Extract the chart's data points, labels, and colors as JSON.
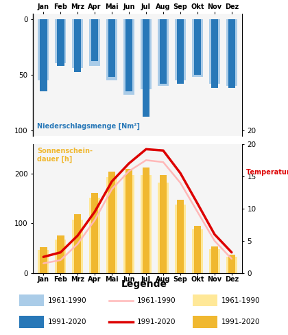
{
  "months": [
    "Jan",
    "Feb",
    "Mrz",
    "Apr",
    "Mai",
    "Jun",
    "Jul",
    "Aug",
    "Sep",
    "Okt",
    "Nov",
    "Dez"
  ],
  "precip_1961_1990": [
    55,
    40,
    44,
    42,
    55,
    68,
    63,
    60,
    55,
    52,
    58,
    60
  ],
  "precip_1991_2020": [
    65,
    42,
    48,
    38,
    52,
    65,
    88,
    58,
    58,
    50,
    62,
    62
  ],
  "temp_1961_1990": [
    1.5,
    2.0,
    4.5,
    8.2,
    13.0,
    15.8,
    17.5,
    17.2,
    14.0,
    9.5,
    5.0,
    2.2
  ],
  "temp_1991_2020": [
    2.5,
    3.2,
    5.8,
    9.5,
    14.2,
    17.0,
    19.2,
    19.0,
    15.5,
    10.8,
    6.0,
    3.2
  ],
  "sunshine_1961_1990": [
    47,
    68,
    108,
    152,
    193,
    198,
    198,
    182,
    138,
    88,
    48,
    33
  ],
  "sunshine_1991_2020": [
    52,
    76,
    118,
    162,
    205,
    210,
    213,
    198,
    148,
    95,
    53,
    37
  ],
  "precip_color_old": "#aacce8",
  "precip_color_new": "#2878b8",
  "sunshine_color_old": "#ffe898",
  "sunshine_color_new": "#f0b830",
  "temp_color_old": "#ffb8b8",
  "temp_color_new": "#dd0000",
  "title_precip": "Niederschlagsmenge [Nm²]",
  "title_temp": "Temperatur [°C]",
  "title_sunshine": "Sonnenschein-\ndauer [h]",
  "legend_title": "Legende",
  "legend_old": "1961-1990",
  "legend_new": "1991-2020",
  "bg_color": "#f5f5f5"
}
